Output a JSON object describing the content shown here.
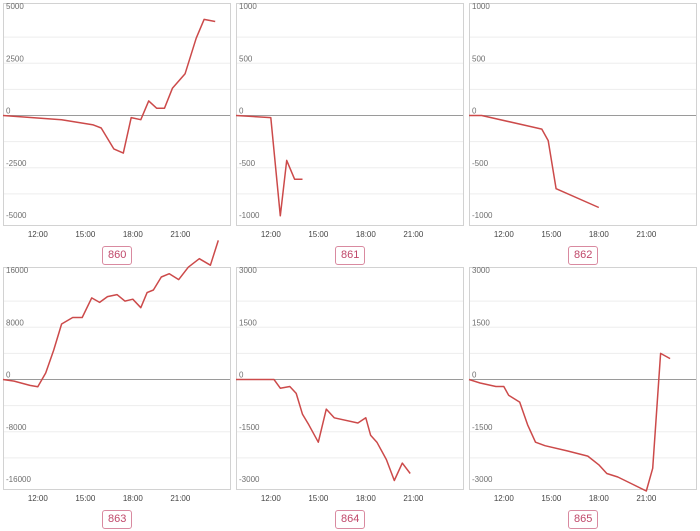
{
  "chart_data": [
    {
      "type": "line",
      "title": "860",
      "x_ticks": [
        "12:00",
        "15:00",
        "18:00",
        "21:00"
      ],
      "y_ticks": [
        5000,
        2500,
        0,
        -2500,
        -5000
      ],
      "ylim": [
        -5000,
        5000
      ],
      "xlim": [
        9.8,
        24.2
      ],
      "grid": true,
      "series": [
        {
          "x": [
            9.8,
            13.5,
            15.5,
            16.0,
            16.8,
            17.4,
            17.9,
            18.5,
            19.0,
            19.5,
            20.0,
            20.5,
            21.3,
            22.0,
            22.5,
            23.2
          ],
          "y": [
            0,
            -200,
            -450,
            -600,
            -1600,
            -1800,
            -100,
            -200,
            700,
            350,
            350,
            1300,
            2000,
            3700,
            4600,
            4500
          ]
        }
      ]
    },
    {
      "type": "line",
      "title": "861",
      "x_ticks": [
        "12:00",
        "15:00",
        "18:00",
        "21:00"
      ],
      "y_ticks": [
        1000,
        500,
        0,
        -500,
        -1000
      ],
      "ylim": [
        -1000,
        1000
      ],
      "xlim": [
        9.8,
        24.2
      ],
      "grid": true,
      "series": [
        {
          "x": [
            9.8,
            12.0,
            12.6,
            13.0,
            13.5,
            14.0
          ],
          "y": [
            0,
            -20,
            -960,
            -430,
            -610,
            -610
          ]
        }
      ]
    },
    {
      "type": "line",
      "title": "862",
      "x_ticks": [
        "12:00",
        "15:00",
        "18:00",
        "21:00"
      ],
      "y_ticks": [
        1000,
        500,
        0,
        -500,
        -1000
      ],
      "ylim": [
        -1000,
        1000
      ],
      "xlim": [
        9.8,
        24.2
      ],
      "grid": true,
      "series": [
        {
          "x": [
            9.8,
            10.6,
            14.4,
            14.8,
            15.3,
            18.0
          ],
          "y": [
            0,
            0,
            -130,
            -240,
            -700,
            -880
          ]
        }
      ]
    },
    {
      "type": "line",
      "title": "863",
      "x_ticks": [
        "12:00",
        "15:00",
        "18:00",
        "21:00"
      ],
      "y_ticks": [
        16000,
        8000,
        0,
        -8000,
        -16000
      ],
      "ylim": [
        -16000,
        16000
      ],
      "xlim": [
        9.8,
        24.2
      ],
      "grid": true,
      "series": [
        {
          "x": [
            9.8,
            10.5,
            11.5,
            12.0,
            12.5,
            13.0,
            13.5,
            14.2,
            14.8,
            15.4,
            15.9,
            16.4,
            17.0,
            17.5,
            18.0,
            18.5,
            18.9,
            19.3,
            19.8,
            20.3,
            20.9,
            21.5,
            22.2,
            22.9,
            23.4
          ],
          "y": [
            0,
            -250,
            -900,
            -1100,
            1000,
            4500,
            8500,
            9500,
            9500,
            12500,
            11800,
            12700,
            13000,
            12000,
            12300,
            11000,
            13300,
            13700,
            15700,
            16200,
            15300,
            17200,
            18500,
            17500,
            21300
          ]
        }
      ]
    },
    {
      "type": "line",
      "title": "864",
      "x_ticks": [
        "12:00",
        "15:00",
        "18:00",
        "21:00"
      ],
      "y_ticks": [
        3000,
        1500,
        0,
        -1500,
        -3000
      ],
      "ylim": [
        -3000,
        3000
      ],
      "xlim": [
        9.8,
        24.2
      ],
      "grid": true,
      "series": [
        {
          "x": [
            9.8,
            12.2,
            12.6,
            13.2,
            13.6,
            14.0,
            14.4,
            15.0,
            15.5,
            16.0,
            17.5,
            18.0,
            18.3,
            18.7,
            19.3,
            19.8,
            20.3,
            20.8
          ],
          "y": [
            0,
            0,
            -250,
            -200,
            -400,
            -1000,
            -1300,
            -1800,
            -850,
            -1100,
            -1250,
            -1100,
            -1600,
            -1800,
            -2300,
            -2900,
            -2400,
            -2700
          ]
        }
      ]
    },
    {
      "type": "line",
      "title": "865",
      "x_ticks": [
        "12:00",
        "15:00",
        "18:00",
        "21:00"
      ],
      "y_ticks": [
        3000,
        1500,
        0,
        -1500,
        -3000
      ],
      "ylim": [
        -3000,
        3000
      ],
      "xlim": [
        9.8,
        24.2
      ],
      "grid": true,
      "series": [
        {
          "x": [
            9.8,
            10.5,
            11.5,
            12.0,
            12.3,
            13.0,
            13.5,
            14.0,
            14.6,
            16.0,
            17.3,
            18.0,
            18.5,
            19.2,
            20.1,
            21.0,
            21.4,
            21.9,
            22.5
          ],
          "y": [
            0,
            -100,
            -200,
            -200,
            -450,
            -650,
            -1300,
            -1800,
            -1900,
            -2050,
            -2200,
            -2450,
            -2700,
            -2800,
            -3000,
            -3200,
            -2550,
            750,
            600
          ]
        }
      ]
    }
  ]
}
